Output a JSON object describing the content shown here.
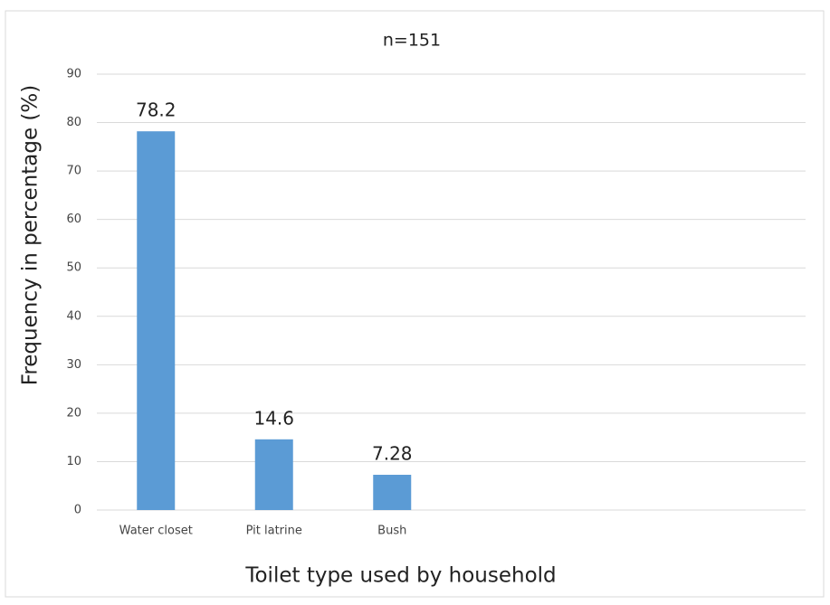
{
  "chart_data": {
    "type": "bar",
    "title": "n=151",
    "x_label": "Toilet type used by household",
    "y_label": "Frequency in percentage (%)",
    "categories": [
      "Water closet",
      "Pit latrine",
      "Bush",
      null,
      null,
      null
    ],
    "values": [
      78.2,
      14.6,
      7.28,
      null,
      null,
      null
    ],
    "color": "#5b9bd5",
    "ylim": [
      0,
      90
    ],
    "yticks": [
      0,
      10,
      20,
      30,
      40,
      50,
      60,
      70,
      80,
      90
    ],
    "grid": true
  }
}
